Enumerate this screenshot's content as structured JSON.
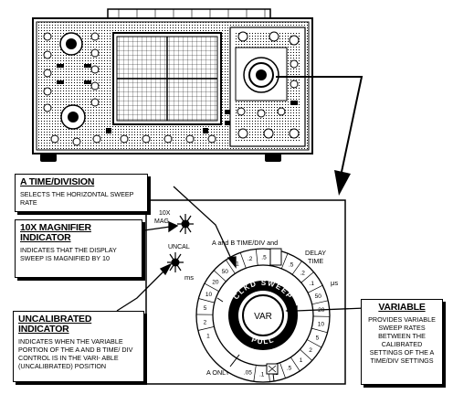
{
  "callouts": {
    "time_division": {
      "title": "A TIME/DIVISION",
      "text": "SELECTS THE HORIZONTAL SWEEP RATE"
    },
    "magnifier": {
      "title_line1": "10X MAGNIFIER",
      "title_line2": "INDICATOR",
      "text": "INDICATES THAT THE DISPLAY SWEEP IS MAGNIFIED BY 10"
    },
    "uncal": {
      "title_line1": "UNCALIBRATED",
      "title_line2": "INDICATOR",
      "text": "INDICATES WHEN THE VARIABLE PORTION OF THE A and B TIME/ DIV CONTROL IS IN THE VARI- ABLE (UNCALIBRATED) POSITION"
    },
    "variable": {
      "title": "VARIABLE",
      "text": "PROVIDES VARIABLE SWEEP RATES BETWEEN THE CALIBRATED SETTINGS OF THE A TIME/DIV SETTINGS"
    }
  },
  "panel": {
    "mag_label_1": "10X",
    "mag_label_2": "MAG",
    "uncal_label": "UNCAL",
    "dial_title": "A and B TIME/DIV and",
    "delay_label_1": "DELAY",
    "delay_label_2": "TIME",
    "unit_ms": "ms",
    "unit_us": "μs",
    "a_only": "A ONLY",
    "knob_label": "VAR",
    "ring_top": "CLKD SWEEP",
    "ring_bottom": "PULL",
    "scale": [
      "1",
      "2",
      "5",
      "10",
      "20",
      "50",
      ".1",
      ".2",
      ".5",
      "1",
      ".5",
      ".2",
      ".1",
      "50",
      "20",
      "10",
      "5",
      "2",
      "1",
      ".5",
      ".2",
      ".1",
      ".05"
    ]
  },
  "icons": [
    "oscilloscope-icon",
    "magnifier-indicator-lamp-icon",
    "uncal-indicator-lamp-icon"
  ]
}
